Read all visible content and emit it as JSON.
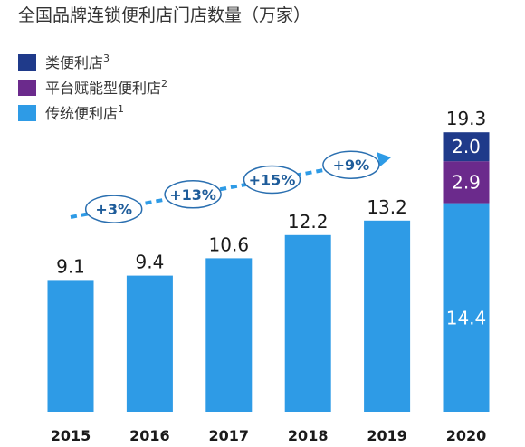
{
  "chart_data": {
    "type": "bar",
    "stacked": true,
    "title": "全国品牌连锁便利店门店数量（万家）",
    "categories": [
      "2015",
      "2016",
      "2017",
      "2018",
      "2019",
      "2020"
    ],
    "series": [
      {
        "name": "传统便利店",
        "sup": "1",
        "color": "#2e9be6",
        "values": [
          9.1,
          9.4,
          10.6,
          12.2,
          13.2,
          14.4
        ]
      },
      {
        "name": "平台赋能型便利店",
        "sup": "2",
        "color": "#6b2a8c",
        "values": [
          0,
          0,
          0,
          0,
          0,
          2.9
        ]
      },
      {
        "name": "类便利店",
        "sup": "3",
        "color": "#1f3a8a",
        "values": [
          0,
          0,
          0,
          0,
          0,
          2.0
        ]
      }
    ],
    "total_labels": [
      "9.1",
      "9.4",
      "10.6",
      "12.2",
      "13.2",
      "19.3"
    ],
    "segment_labels": {
      "category": "2020",
      "values": [
        "14.4",
        "2.9",
        "2.0"
      ]
    },
    "growth_annotations": [
      {
        "label": "+3%",
        "between": [
          "2015",
          "2016"
        ]
      },
      {
        "label": "+13%",
        "between": [
          "2016",
          "2017"
        ]
      },
      {
        "label": "+15%",
        "between": [
          "2017",
          "2018"
        ]
      },
      {
        "label": "+9%",
        "between": [
          "2018",
          "2019"
        ]
      }
    ],
    "legend_order": [
      "类便利店",
      "平台赋能型便利店",
      "传统便利店"
    ],
    "legend_position": "top-left",
    "ylim": [
      0,
      19.3
    ],
    "grid": false,
    "arrow_color": "#2e9be6"
  }
}
